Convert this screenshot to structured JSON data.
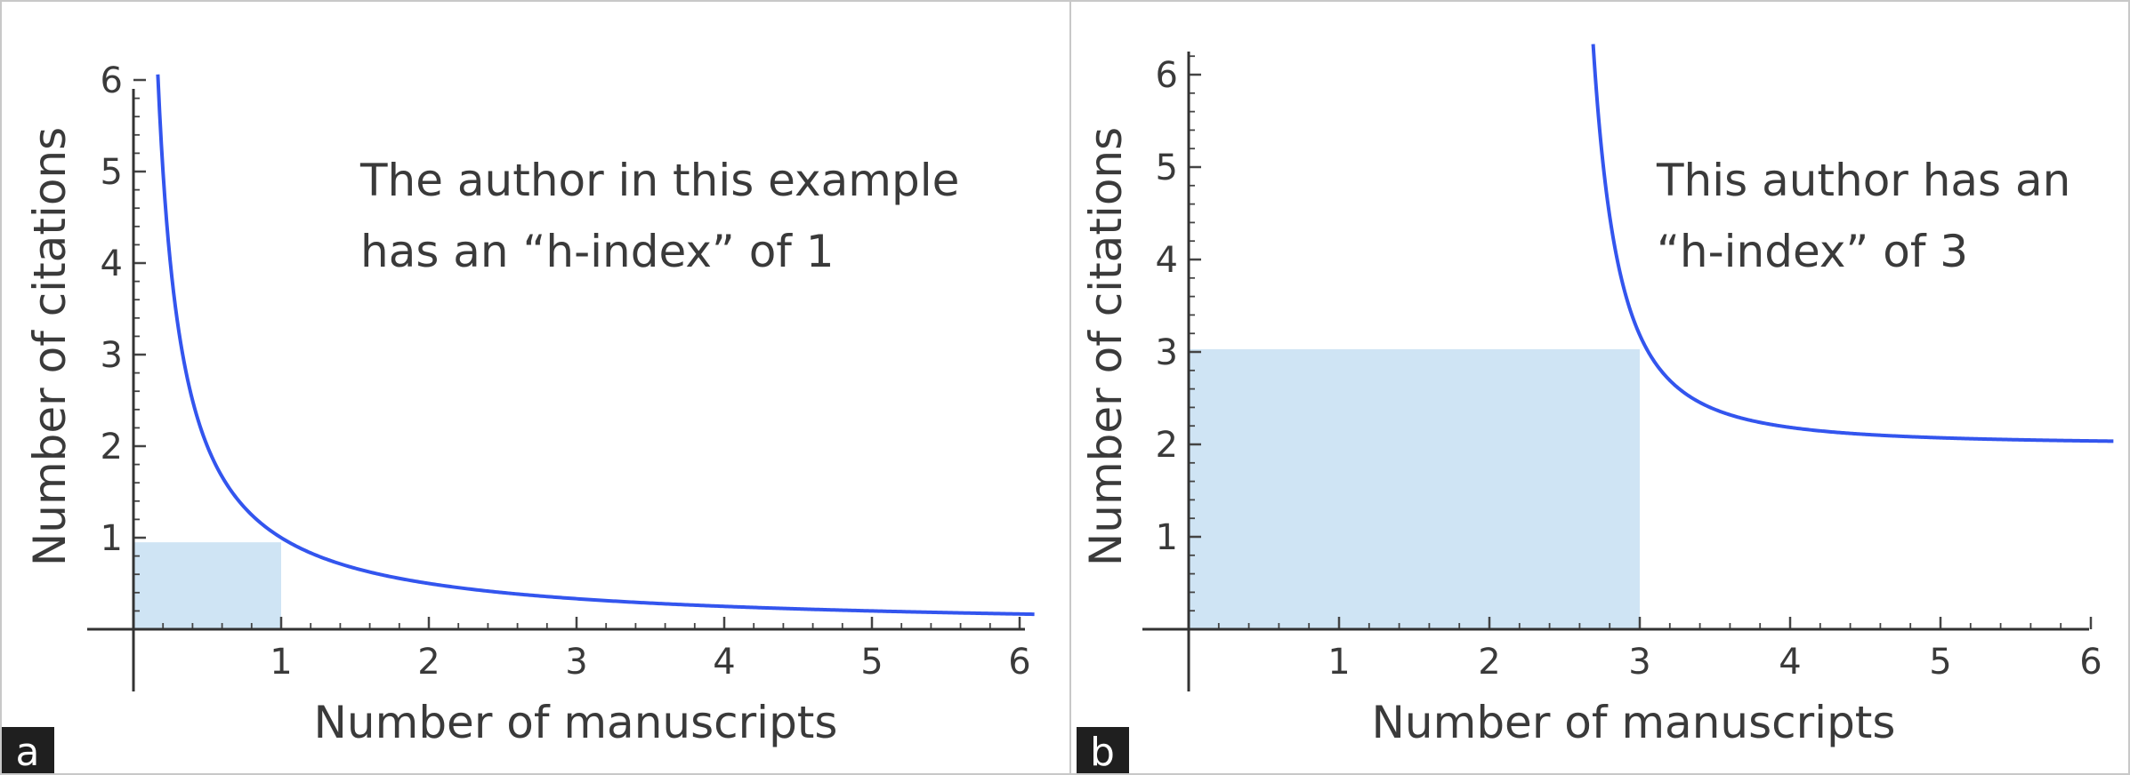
{
  "chart_data": [
    {
      "type": "line",
      "panel_label": "a",
      "xlabel": "Number of manuscripts",
      "ylabel": "Number of citations",
      "xlim": [
        0,
        6.1
      ],
      "ylim": [
        0,
        6.1
      ],
      "x_ticks": [
        1,
        2,
        3,
        4,
        5,
        6
      ],
      "y_ticks": [
        1,
        2,
        3,
        4,
        5,
        6
      ],
      "annotation": [
        "The author in this example",
        "has an “h-index” of 1"
      ],
      "series": [
        {
          "formula": "y = 1/x",
          "x_range": [
            0.165,
            6.1
          ]
        }
      ],
      "h_index": 1,
      "shaded_area": {
        "x": [
          0,
          1
        ],
        "y": [
          0,
          0.95
        ]
      },
      "curve_color": "#3355ee",
      "shade_color": "#cfe4f4",
      "grid": false
    },
    {
      "type": "line",
      "panel_label": "b",
      "xlabel": "Number of manuscripts",
      "ylabel": "Number of citations",
      "xlim": [
        0,
        6.15
      ],
      "ylim": [
        0,
        6.2
      ],
      "x_ticks": [
        1,
        2,
        3,
        4,
        5,
        6
      ],
      "y_ticks": [
        1,
        2,
        3,
        4,
        5,
        6
      ],
      "annotation": [
        "This author has an",
        "“h-index” of 3"
      ],
      "series": [
        {
          "formula": "y = 2 + 0.5/(x - 2.35)^2",
          "x_range": [
            2.5,
            6.15
          ]
        }
      ],
      "h_index": 3,
      "shaded_area": {
        "x": [
          0,
          3
        ],
        "y": [
          0,
          3.03
        ]
      },
      "curve_color": "#3355ee",
      "shade_color": "#cfe4f4",
      "grid": false
    }
  ]
}
